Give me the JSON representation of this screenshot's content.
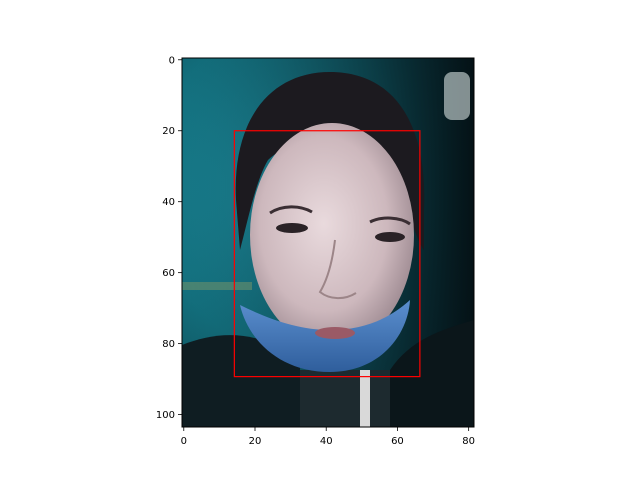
{
  "chart_data": {
    "type": "image",
    "title": "",
    "xlabel": "",
    "ylabel": "",
    "xlim": [
      -0.5,
      81.5
    ],
    "ylim": [
      103.5,
      -0.5
    ],
    "x_ticks": [
      0,
      20,
      40,
      60,
      80
    ],
    "y_ticks": [
      0,
      20,
      40,
      60,
      80,
      100
    ],
    "image_content": "photo-of-face-with-blue-mask",
    "annotations": [
      {
        "type": "rectangle",
        "x0": 14.2,
        "y0": 20.0,
        "x1": 66.3,
        "y1": 89.3,
        "color": "#ff0000"
      }
    ]
  }
}
